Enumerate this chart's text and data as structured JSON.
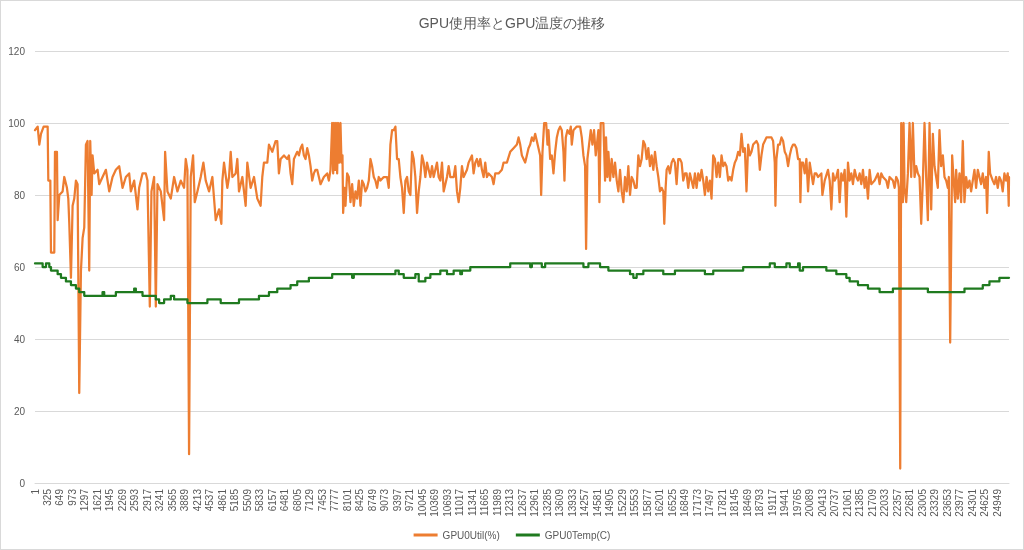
{
  "chart_data": {
    "type": "line",
    "title": "GPU使用率とGPU温度の推移",
    "xlim": [
      1,
      25250
    ],
    "xticks": [
      1,
      325,
      649,
      973,
      1297,
      1621,
      1945,
      2269,
      2593,
      2917,
      3241,
      3565,
      3889,
      4213,
      4537,
      4861,
      5185,
      5509,
      5833,
      6157,
      6481,
      6805,
      7129,
      7453,
      7777,
      8101,
      8425,
      8749,
      9073,
      9397,
      9721,
      10045,
      10369,
      10693,
      11017,
      11341,
      11665,
      11989,
      12313,
      12637,
      12961,
      13285,
      13609,
      13933,
      14257,
      14581,
      14905,
      15229,
      15553,
      15877,
      16201,
      16525,
      16849,
      17173,
      17497,
      17821,
      18145,
      18469,
      18793,
      19117,
      19441,
      19765,
      20089,
      20413,
      20737,
      21061,
      21385,
      21709,
      22033,
      22357,
      22681,
      23005,
      23329,
      23653,
      23977,
      24301,
      24625,
      24949
    ],
    "ylim": [
      0,
      120
    ],
    "yticks": [
      0,
      20,
      40,
      60,
      80,
      100,
      120
    ],
    "grid": "y",
    "legend": "bottom",
    "series": [
      {
        "name": "GPU0Util(%)",
        "color": "#ed7d31",
        "x": [
          1,
          70,
          113,
          156,
          225,
          329,
          346,
          398,
          415,
          501,
          519,
          570,
          588,
          631,
          717,
          760,
          829,
          864,
          890,
          933,
          976,
          1019,
          1062,
          1105,
          1148,
          1192,
          1235,
          1278,
          1321,
          1364,
          1407,
          1433,
          1468,
          1493,
          1537,
          1623,
          1666,
          1752,
          1839,
          1925,
          2011,
          2097,
          2184,
          2270,
          2356,
          2442,
          2486,
          2572,
          2658,
          2701,
          2788,
          2874,
          2917,
          2977,
          3020,
          3089,
          3133,
          3176,
          3262,
          3348,
          3374,
          3434,
          3521,
          3607,
          3693,
          3780,
          3866,
          3909,
          3952,
          3995,
          4038,
          4099,
          4142,
          4211,
          4297,
          4366,
          4427,
          4513,
          4599,
          4686,
          4772,
          4832,
          4858,
          4901,
          4987,
          5031,
          5074,
          5117,
          5203,
          5246,
          5289,
          5376,
          5462,
          5505,
          5591,
          5678,
          5764,
          5850,
          5893,
          5936,
          6023,
          6066,
          6152,
          6238,
          6281,
          6324,
          6368,
          6454,
          6540,
          6583,
          6626,
          6669,
          6713,
          6756,
          6799,
          6842,
          6885,
          6928,
          6971,
          7014,
          7058,
          7101,
          7144,
          7187,
          7230,
          7273,
          7316,
          7360,
          7403,
          7489,
          7575,
          7618,
          7662,
          7705,
          7731,
          7756,
          7782,
          7808,
          7834,
          7860,
          7886,
          7920,
          7946,
          7972,
          7989,
          8024,
          8050,
          8093,
          8136,
          8179,
          8222,
          8265,
          8309,
          8352,
          8395,
          8438,
          8481,
          8524,
          8567,
          8610,
          8654,
          8697,
          8740,
          8783,
          8826,
          8869,
          8912,
          8956,
          9042,
          9128,
          9171,
          9214,
          9258,
          9301,
          9344,
          9387,
          9430,
          9473,
          9516,
          9560,
          9603,
          9646,
          9689,
          9732,
          9775,
          9818,
          9861,
          9905,
          9948,
          9991,
          10034,
          10077,
          10120,
          10163,
          10250,
          10293,
          10336,
          10422,
          10465,
          10508,
          10552,
          10595,
          10681,
          10724,
          10767,
          10854,
          10897,
          10940,
          10983,
          11026,
          11069,
          11112,
          11199,
          11242,
          11285,
          11328,
          11371,
          11414,
          11457,
          11501,
          11544,
          11587,
          11630,
          11673,
          11716,
          11760,
          11846,
          11889,
          11932,
          12018,
          12104,
          12148,
          12234,
          12320,
          12406,
          12493,
          12536,
          12579,
          12622,
          12665,
          12708,
          12751,
          12794,
          12838,
          12881,
          12924,
          12967,
          13010,
          13096,
          13122,
          13157,
          13200,
          13252,
          13286,
          13312,
          13355,
          13398,
          13441,
          13485,
          13528,
          13571,
          13614,
          13657,
          13700,
          13726,
          13761,
          13804,
          13856,
          13890,
          13916,
          13959,
          14045,
          14132,
          14175,
          14218,
          14261,
          14287,
          14321,
          14364,
          14408,
          14451,
          14494,
          14537,
          14606,
          14632,
          14666,
          14692,
          14735,
          14779,
          14804,
          14839,
          14865,
          14908,
          14951,
          14994,
          15037,
          15081,
          15124,
          15167,
          15210,
          15253,
          15296,
          15339,
          15382,
          15426,
          15469,
          15512,
          15555,
          15598,
          15641,
          15684,
          15728,
          15771,
          15814,
          15857,
          15900,
          15943,
          15986,
          16030,
          16073,
          16116,
          16159,
          16202,
          16245,
          16288,
          16314,
          16349,
          16375,
          16418,
          16461,
          16504,
          16547,
          16590,
          16633,
          16676,
          16720,
          16763,
          16806,
          16849,
          16892,
          16935,
          16978,
          17022,
          17065,
          17108,
          17151,
          17194,
          17237,
          17280,
          17324,
          17367,
          17410,
          17453,
          17496,
          17539,
          17582,
          17626,
          17669,
          17712,
          17755,
          17798,
          17841,
          17884,
          17927,
          17971,
          18014,
          18057,
          18100,
          18143,
          18186,
          18229,
          18273,
          18316,
          18359,
          18402,
          18445,
          18488,
          18531,
          18575,
          18618,
          18704,
          18747,
          18790,
          18833,
          18876,
          18920,
          18963,
          19049,
          19092,
          19135,
          19178,
          19195,
          19221,
          19264,
          19308,
          19351,
          19394,
          19437,
          19480,
          19523,
          19566,
          19609,
          19653,
          19696,
          19739,
          19782,
          19825,
          19842,
          19868,
          19911,
          19955,
          19998,
          20041,
          20084,
          20127,
          20170,
          20213,
          20256,
          20300,
          20386,
          20412,
          20472,
          20558,
          20602,
          20645,
          20688,
          20731,
          20774,
          20817,
          20860,
          20903,
          20947,
          20990,
          21033,
          21076,
          21119,
          21162,
          21205,
          21249,
          21292,
          21335,
          21378,
          21421,
          21464,
          21507,
          21550,
          21594,
          21637,
          21680,
          21766,
          21809,
          21852,
          21896,
          21939,
          21982,
          22068,
          22111,
          22154,
          22241,
          22284,
          22327,
          22370,
          22396,
          22430,
          22456,
          22499,
          22517,
          22543,
          22586,
          22629,
          22672,
          22715,
          22758,
          22801,
          22845,
          22888,
          22931,
          22974,
          23017,
          23060,
          23103,
          23147,
          23190,
          23233,
          23276,
          23319,
          23362,
          23405,
          23448,
          23491,
          23535,
          23578,
          23621,
          23664,
          23690,
          23725,
          23776,
          23811,
          23854,
          23880,
          23923,
          23966,
          24009,
          24052,
          24095,
          24138,
          24182,
          24225,
          24268,
          24311,
          24354,
          24397,
          24441,
          24484,
          24527,
          24570,
          24613,
          24656,
          24682,
          24725,
          24760,
          24829,
          24872,
          24915,
          24958,
          25001,
          25044,
          25087,
          25131,
          25174,
          25217,
          25243,
          25250
        ],
        "values": [
          98,
          99,
          94,
          97,
          99,
          99,
          84,
          84,
          64,
          64,
          92,
          92,
          73,
          80,
          81,
          85,
          82,
          79,
          72,
          57,
          77,
          79,
          84,
          83,
          25,
          59,
          68,
          71,
          94,
          95,
          59,
          95,
          80,
          91,
          86,
          87,
          83,
          85,
          87,
          81,
          85,
          87,
          88,
          82,
          85,
          86,
          81,
          84,
          76,
          82,
          86,
          86,
          84,
          49,
          81,
          85,
          49,
          83,
          81,
          73,
          92,
          81,
          79,
          85,
          81,
          84,
          82,
          90,
          87,
          8,
          85,
          91,
          78,
          81,
          85,
          89,
          84,
          81,
          85,
          73,
          76,
          72,
          84,
          89,
          82,
          85,
          92,
          85,
          86,
          90,
          81,
          85,
          77,
          89,
          82,
          85,
          79,
          77,
          85,
          89,
          89,
          94,
          92,
          95,
          95,
          86,
          90,
          91,
          90,
          91,
          86,
          83,
          90,
          91,
          92,
          91,
          93,
          94,
          91,
          90,
          93,
          91,
          88,
          84,
          86,
          87,
          87,
          85,
          83,
          85,
          86,
          84,
          87,
          100,
          86,
          100,
          87,
          100,
          86,
          100,
          89,
          100,
          89,
          91,
          75,
          82,
          77,
          86,
          85,
          78,
          83,
          77,
          81,
          79,
          84,
          77,
          84,
          83,
          81,
          82,
          84,
          90,
          88,
          85,
          84,
          82,
          85,
          84,
          85,
          85,
          82,
          94,
          98,
          98,
          99,
          90,
          90,
          85,
          82,
          75,
          84,
          85,
          81,
          80,
          92,
          90,
          85,
          75,
          81,
          85,
          91,
          89,
          85,
          89,
          85,
          88,
          85,
          89,
          85,
          84,
          89,
          81,
          85,
          88,
          85,
          85,
          88,
          81,
          78,
          82,
          88,
          85,
          87,
          89,
          90,
          91,
          86,
          89,
          90,
          88,
          90,
          87,
          85,
          89,
          85,
          86,
          85,
          83,
          86,
          86,
          87,
          89,
          89,
          92,
          93,
          94,
          96,
          94,
          91,
          90,
          89,
          91,
          93,
          94,
          96,
          95,
          97,
          95,
          91,
          80,
          92,
          100,
          100,
          94,
          98,
          90,
          91,
          86,
          92,
          96,
          98,
          99,
          98,
          92,
          84,
          96,
          98,
          97,
          99,
          94,
          98,
          99,
          99,
          96,
          91,
          88,
          65,
          90,
          94,
          98,
          94,
          98,
          91,
          98,
          78,
          100,
          100,
          100,
          84,
          96,
          85,
          92,
          84,
          90,
          85,
          89,
          84,
          81,
          87,
          81,
          78,
          85,
          81,
          88,
          80,
          85,
          84,
          82,
          82,
          91,
          88,
          90,
          95,
          94,
          90,
          93,
          88,
          91,
          87,
          92,
          88,
          85,
          81,
          82,
          81,
          72,
          82,
          87,
          88,
          86,
          89,
          90,
          89,
          83,
          90,
          90,
          89,
          84,
          86,
          86,
          82,
          86,
          84,
          82,
          86,
          82,
          86,
          84,
          87,
          84,
          80,
          85,
          81,
          84,
          79,
          91,
          90,
          85,
          89,
          85,
          91,
          88,
          89,
          88,
          84,
          85,
          84,
          87,
          89,
          90,
          92,
          91,
          97,
          92,
          93,
          81,
          94,
          91,
          92,
          94,
          95,
          94,
          87,
          91,
          94,
          95,
          96,
          96,
          96,
          95,
          89,
          77,
          90,
          94,
          94,
          96,
          95,
          92,
          91,
          88,
          91,
          93,
          94,
          94,
          93,
          90,
          90,
          78,
          89,
          89,
          86,
          90,
          81,
          89,
          86,
          83,
          86,
          86,
          85,
          86,
          80,
          84,
          87,
          84,
          76,
          86,
          84,
          85,
          87,
          78,
          86,
          84,
          87,
          74,
          89,
          84,
          86,
          83,
          87,
          85,
          84,
          86,
          83,
          87,
          82,
          85,
          79,
          87,
          83,
          84,
          85,
          86,
          83,
          86,
          85,
          84,
          82,
          85,
          84,
          82,
          85,
          84,
          82,
          4,
          100,
          78,
          100,
          82,
          78,
          86,
          100,
          85,
          100,
          85,
          88,
          86,
          85,
          72,
          84,
          100,
          85,
          73,
          100,
          76,
          97,
          88,
          85,
          82,
          98,
          88,
          91,
          85,
          84,
          82,
          85,
          39,
          91,
          85,
          78,
          87,
          79,
          86,
          78,
          95,
          78,
          85,
          82,
          84,
          81,
          84,
          87,
          82,
          87,
          85,
          83,
          86,
          82,
          85,
          75,
          92,
          86,
          84,
          83,
          85,
          82,
          85,
          84,
          81,
          86,
          84,
          86,
          77,
          85
        ]
      },
      {
        "name": "GPU0Temp(C)",
        "color": "#1f7a1f",
        "type": "step",
        "x": [
          1,
          199,
          286,
          372,
          415,
          588,
          674,
          803,
          933,
          1062,
          1148,
          1278,
          1752,
          1795,
          2097,
          2572,
          2615,
          2788,
          3133,
          3219,
          3348,
          3521,
          3607,
          3952,
          4470,
          4815,
          5289,
          5807,
          6066,
          6281,
          6626,
          6799,
          7101,
          7705,
          8222,
          8265,
          9344,
          9430,
          9560,
          9861,
          9948,
          10120,
          10250,
          10508,
          10681,
          10854,
          11026,
          11069,
          11285,
          12320,
          12838,
          12881,
          13139,
          13226,
          14218,
          14347,
          14649,
          14865,
          15426,
          15512,
          15598,
          15771,
          16288,
          16590,
          17367,
          17583,
          18359,
          19049,
          19178,
          19480,
          19566,
          19782,
          19825,
          19911,
          20515,
          20774,
          21033,
          21119,
          21335,
          21594,
          21896,
          22241,
          23147,
          24096,
          24570,
          24743,
          25001,
          25250
        ],
        "values": [
          61,
          60,
          61,
          60,
          59,
          58,
          57,
          56,
          55,
          54,
          53,
          52,
          53,
          52,
          53,
          54,
          53,
          52,
          51,
          50,
          51,
          52,
          51,
          50,
          51,
          50,
          51,
          52,
          53,
          54,
          55,
          56,
          57,
          58,
          57,
          58,
          59,
          58,
          57,
          58,
          56,
          57,
          58,
          59,
          58,
          59,
          58,
          59,
          60,
          61,
          60,
          61,
          60,
          61,
          60,
          61,
          60,
          59,
          58,
          57,
          58,
          59,
          58,
          59,
          58,
          59,
          60,
          61,
          60,
          61,
          60,
          61,
          59,
          60,
          59,
          58,
          57,
          56,
          55,
          54,
          53,
          54,
          53,
          54,
          55,
          56,
          57,
          57
        ]
      }
    ]
  }
}
